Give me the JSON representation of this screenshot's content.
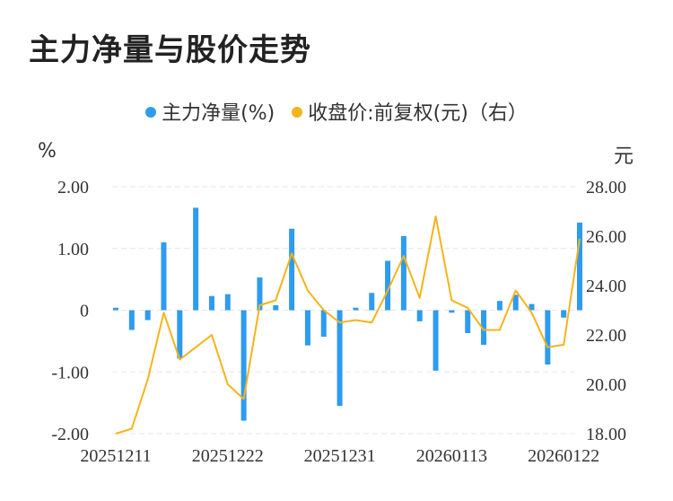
{
  "title": "主力净量与股价走势",
  "legend": {
    "series1": "主力净量(%)",
    "series2": "收盘价:前复权(元)（右）"
  },
  "units": {
    "left": "%",
    "right": "元"
  },
  "colors": {
    "bar": "#2e9bef",
    "line": "#f4b41a",
    "grid": "#e6e6e6",
    "text": "#333333"
  },
  "chart_data": {
    "type": "bar",
    "title": "主力净量与股价走势",
    "xlabel": "",
    "ylabel": "%",
    "y2label": "元",
    "ylim": [
      -2,
      2
    ],
    "y2lim": [
      18,
      28
    ],
    "yticks": [
      "2.00",
      "1.00",
      "0",
      "-1.00",
      "-2.00"
    ],
    "y2ticks": [
      "28.00",
      "26.00",
      "24.00",
      "22.00",
      "20.00",
      "18.00"
    ],
    "xticks": [
      "20251211",
      "20251222",
      "20251231",
      "20260113",
      "20260122"
    ],
    "xtick_index": [
      0,
      7,
      14,
      21,
      28
    ],
    "grid": true,
    "legend_position": "top-center",
    "series": [
      {
        "name": "主力净量(%)",
        "type": "bar",
        "values": [
          0.04,
          -0.32,
          -0.16,
          1.1,
          -0.78,
          1.66,
          0.23,
          0.26,
          -1.79,
          0.53,
          0.08,
          1.32,
          -0.57,
          -0.43,
          -1.55,
          0.04,
          0.28,
          0.8,
          1.2,
          -0.18,
          -0.98,
          -0.04,
          -0.37,
          -0.56,
          0.15,
          0.25,
          0.1,
          -0.88,
          -0.12,
          1.42
        ]
      },
      {
        "name": "收盘价:前复权(元)（右）",
        "type": "line",
        "values": [
          18.0,
          18.2,
          20.2,
          22.9,
          21.0,
          21.5,
          22.0,
          20.0,
          19.4,
          23.2,
          23.4,
          25.3,
          23.8,
          23.0,
          22.5,
          22.6,
          22.5,
          23.8,
          25.2,
          23.5,
          26.8,
          23.4,
          23.1,
          22.2,
          22.2,
          23.8,
          22.9,
          21.5,
          21.6,
          25.9
        ]
      }
    ]
  }
}
